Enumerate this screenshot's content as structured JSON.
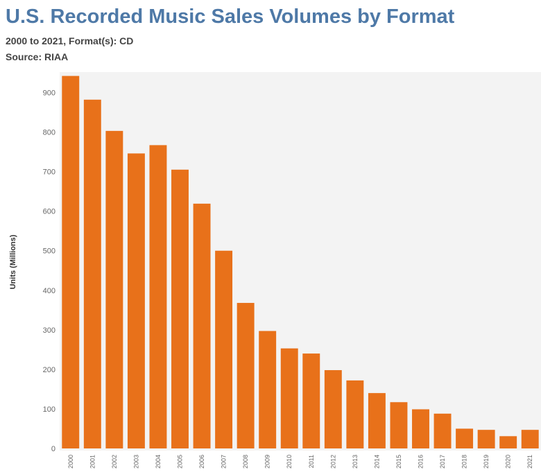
{
  "title": "U.S. Recorded Music Sales Volumes by Format",
  "subtitle": "2000 to 2021, Format(s): CD",
  "source": "Source: RIAA",
  "chart_data": {
    "type": "bar",
    "title": "U.S. Recorded Music Sales Volumes by Format",
    "xlabel": "",
    "ylabel": "Units (Millions)",
    "ylim": [
      0,
      950
    ],
    "yticks": [
      0,
      100,
      200,
      300,
      400,
      500,
      600,
      700,
      800,
      900
    ],
    "grid": false,
    "bar_color": "#e8711a",
    "plot_background": "#f3f3f3",
    "categories": [
      "2000",
      "2001",
      "2002",
      "2003",
      "2004",
      "2005",
      "2006",
      "2007",
      "2008",
      "2009",
      "2010",
      "2011",
      "2012",
      "2013",
      "2014",
      "2015",
      "2016",
      "2017",
      "2018",
      "2019",
      "2020",
      "2021"
    ],
    "values": [
      942,
      882,
      803,
      746,
      767,
      705,
      619,
      500,
      368,
      297,
      253,
      240,
      198,
      172,
      140,
      117,
      99,
      88,
      50,
      47,
      31,
      47
    ]
  }
}
